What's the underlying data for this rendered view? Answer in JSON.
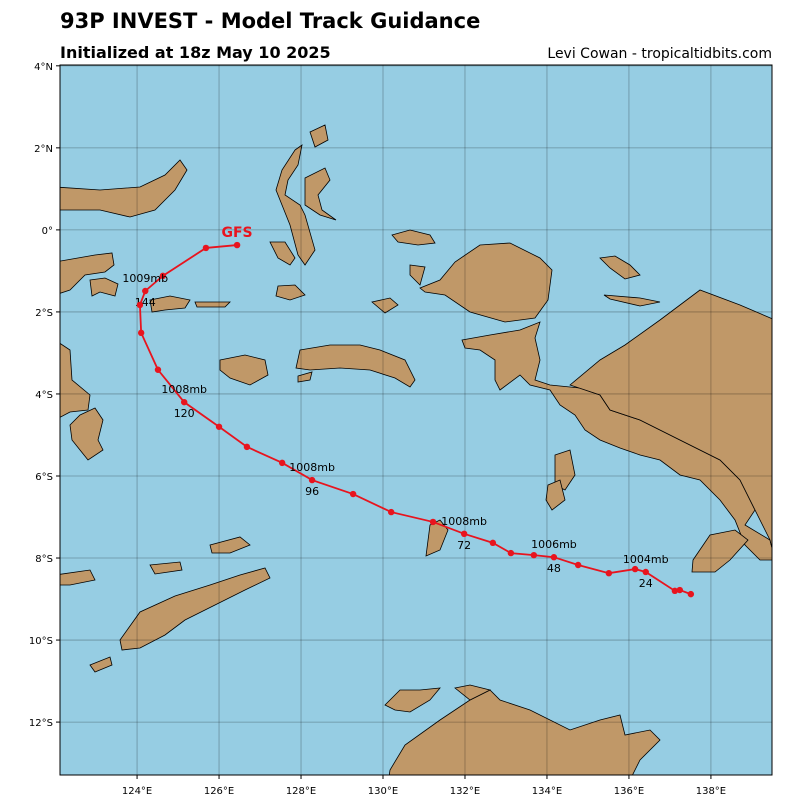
{
  "header": {
    "title": "93P INVEST - Model Track Guidance",
    "subtitle": "Initialized at 18z May 10 2025",
    "credit": "Levi Cowan - tropicaltidbits.com"
  },
  "chart_data": {
    "type": "track",
    "xlim": [
      122.12,
      139.49
    ],
    "ylim": [
      -13.29,
      4.02
    ],
    "xticks": [
      {
        "value": 124,
        "label": "124°E"
      },
      {
        "value": 126,
        "label": "126°E"
      },
      {
        "value": 128,
        "label": "128°E"
      },
      {
        "value": 130,
        "label": "130°E"
      },
      {
        "value": 132,
        "label": "132°E"
      },
      {
        "value": 134,
        "label": "134°E"
      },
      {
        "value": 136,
        "label": "136°E"
      },
      {
        "value": 138,
        "label": "138°E"
      }
    ],
    "yticks": [
      {
        "value": 4,
        "label": "4°N"
      },
      {
        "value": 2,
        "label": "2°N"
      },
      {
        "value": 0,
        "label": "0°"
      },
      {
        "value": -2,
        "label": "2°S"
      },
      {
        "value": -4,
        "label": "4°S"
      },
      {
        "value": -6,
        "label": "6°S"
      },
      {
        "value": -8,
        "label": "8°S"
      },
      {
        "value": -10,
        "label": "10°S"
      },
      {
        "value": -12,
        "label": "12°S"
      }
    ],
    "grid": true,
    "ocean_color": "#96cde3",
    "land_color": "#c09868",
    "series": [
      {
        "name": "GFS",
        "color": "#e8141e",
        "lon": [
          126.44,
          125.68,
          124.63,
          124.2,
          124.07,
          124.1,
          124.51,
          125.15,
          126.0,
          126.68,
          127.54,
          128.27,
          129.27,
          130.2,
          131.22,
          131.98,
          132.68,
          133.12,
          133.68,
          134.17,
          134.76,
          135.51,
          136.15,
          136.41,
          137.12,
          137.24,
          137.51
        ],
        "lat": [
          -0.37,
          -0.44,
          -1.12,
          -1.49,
          -1.83,
          -2.51,
          -3.41,
          -4.2,
          -4.8,
          -5.29,
          -5.68,
          -6.1,
          -6.44,
          -6.88,
          -7.12,
          -7.41,
          -7.63,
          -7.88,
          -7.93,
          -7.98,
          -8.17,
          -8.37,
          -8.27,
          -8.34,
          -8.8,
          -8.78,
          -8.88
        ],
        "pressure_labels": [
          null,
          null,
          null,
          "1009mb",
          null,
          null,
          null,
          "1008mb",
          null,
          null,
          null,
          "1008mb",
          null,
          null,
          null,
          "1008mb",
          null,
          null,
          null,
          "1006mb",
          null,
          null,
          null,
          "1004mb",
          null,
          null,
          null
        ],
        "hour_labels": [
          null,
          null,
          null,
          144,
          null,
          null,
          null,
          120,
          null,
          null,
          null,
          96,
          null,
          null,
          null,
          72,
          null,
          null,
          null,
          48,
          null,
          null,
          null,
          24,
          null,
          null,
          null
        ]
      }
    ]
  }
}
